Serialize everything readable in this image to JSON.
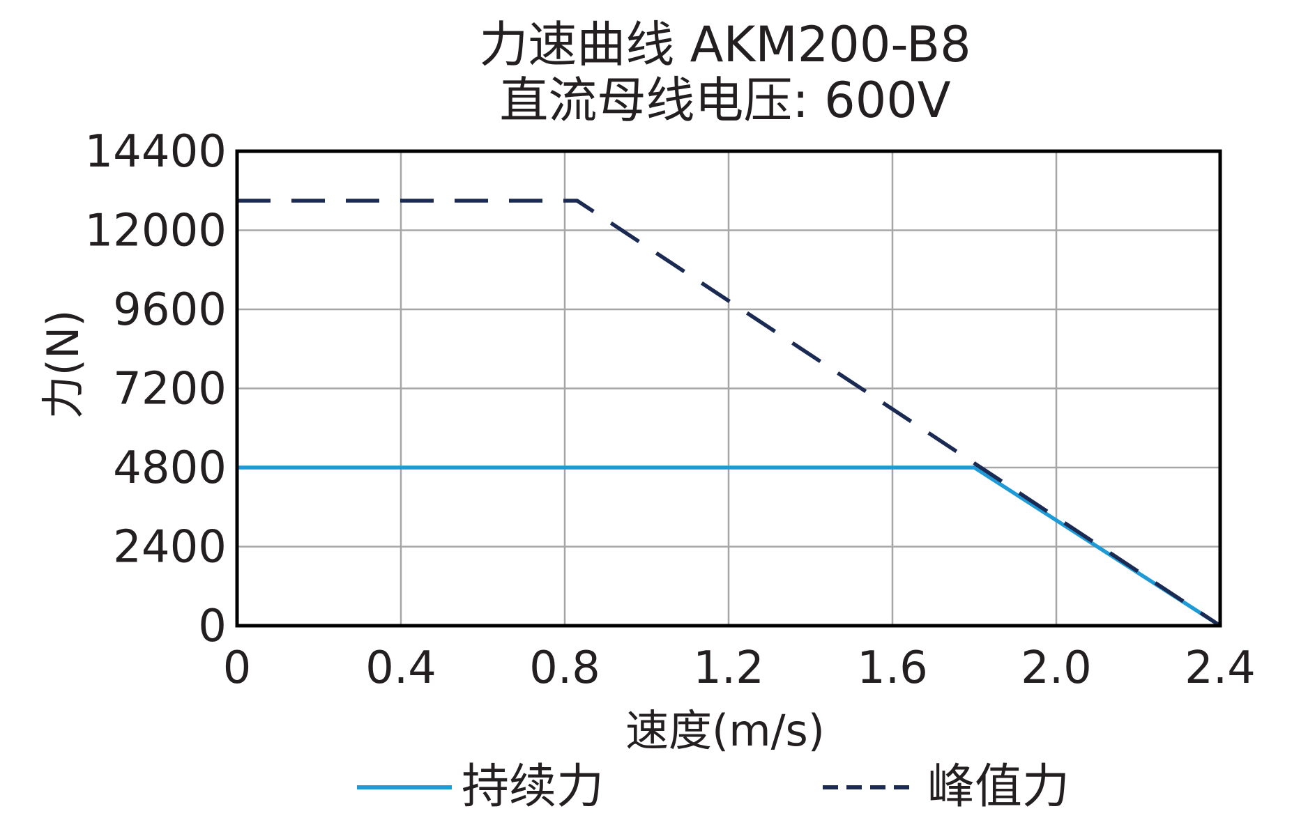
{
  "chart_data": {
    "type": "line",
    "title": "力速曲线 AKM200-B8",
    "subtitle": "直流母线电压: 600V",
    "xlabel": "速度(m/s)",
    "ylabel": "力(N)",
    "xlim": [
      0,
      2.4
    ],
    "ylim": [
      0,
      14400
    ],
    "x_ticks": [
      "0",
      "0.4",
      "0.8",
      "1.2",
      "1.6",
      "2.0",
      "2.4"
    ],
    "x_tick_values": [
      0,
      0.4,
      0.8,
      1.2,
      1.6,
      2.0,
      2.4
    ],
    "y_ticks": [
      "14400",
      "12000",
      "9600",
      "7200",
      "4800",
      "2400",
      "0"
    ],
    "y_tick_values": [
      14400,
      12000,
      9600,
      7200,
      4800,
      2400,
      0
    ],
    "grid": true,
    "legend_position": "bottom",
    "series": [
      {
        "name": "持续力",
        "style": "solid",
        "color": "#1e9ad6",
        "x": [
          0,
          1.8,
          2.4
        ],
        "y": [
          4800,
          4800,
          0
        ]
      },
      {
        "name": "峰值力",
        "style": "dashed",
        "color": "#1a2a52",
        "x": [
          0,
          0.83,
          2.4
        ],
        "y": [
          12900,
          12900,
          0
        ]
      }
    ]
  }
}
